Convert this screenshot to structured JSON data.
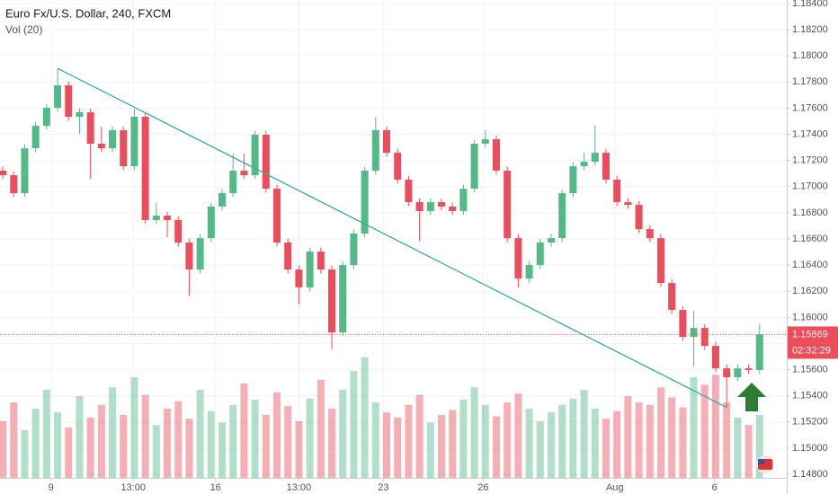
{
  "chart_data": {
    "type": "candlestick",
    "title": "Euro Fx/U.S. Dollar, 240, FXCM",
    "volume_label": "Vol (20)",
    "open": [
      1.17122,
      1.17087,
      1.1695,
      1.17293,
      1.17465,
      1.17603,
      1.17774,
      1.17534,
      1.17568,
      1.17328,
      1.17293,
      1.17431,
      1.17156,
      1.17534,
      1.16744,
      1.16778,
      1.16744,
      1.16572,
      1.16366,
      1.16606,
      1.16847,
      1.1695,
      1.17122,
      1.17087,
      1.17397,
      1.16984,
      1.16572,
      1.16366,
      1.16229,
      1.16503,
      1.16366,
      1.15885,
      1.164,
      1.16641,
      1.17122,
      1.17431,
      1.17259,
      1.17053,
      1.16881,
      1.16813,
      1.16881,
      1.16847,
      1.16813,
      1.16984,
      1.17328,
      1.17362,
      1.17122,
      1.16606,
      1.16297,
      1.164,
      1.16572,
      1.16606,
      1.1695,
      1.17156,
      1.1719,
      1.17259,
      1.17053,
      1.16881,
      1.1686,
      1.16675,
      1.16606,
      1.16263,
      1.16057,
      1.15851,
      1.15919,
      1.15782,
      1.1561,
      1.15542,
      1.1561,
      1.15597
    ],
    "high": [
      1.17152,
      1.17117,
      1.17323,
      1.17495,
      1.17633,
      1.17904,
      1.17804,
      1.17598,
      1.17598,
      1.17458,
      1.17461,
      1.17461,
      1.17594,
      1.17564,
      1.16878,
      1.16808,
      1.16774,
      1.16602,
      1.16636,
      1.16877,
      1.1698,
      1.17252,
      1.17252,
      1.17427,
      1.17427,
      1.17014,
      1.16602,
      1.16396,
      1.16533,
      1.16533,
      1.16396,
      1.1643,
      1.16671,
      1.17152,
      1.17531,
      1.17461,
      1.17289,
      1.17083,
      1.16911,
      1.16911,
      1.16911,
      1.16877,
      1.17014,
      1.17358,
      1.17432,
      1.17392,
      1.17152,
      1.16636,
      1.1643,
      1.16602,
      1.16636,
      1.1698,
      1.17186,
      1.1726,
      1.17469,
      1.17289,
      1.17083,
      1.16911,
      1.1689,
      1.16705,
      1.16636,
      1.16293,
      1.16087,
      1.16049,
      1.15949,
      1.15812,
      1.1564,
      1.1564,
      1.1564,
      1.15949
    ],
    "low": [
      1.17057,
      1.1692,
      1.1692,
      1.17263,
      1.17435,
      1.17573,
      1.17504,
      1.17404,
      1.17058,
      1.17263,
      1.17263,
      1.17126,
      1.17126,
      1.16714,
      1.16714,
      1.16614,
      1.16542,
      1.16166,
      1.16336,
      1.16576,
      1.16817,
      1.1692,
      1.17057,
      1.17057,
      1.16954,
      1.16542,
      1.16336,
      1.16099,
      1.16199,
      1.16336,
      1.15755,
      1.15855,
      1.1637,
      1.16611,
      1.17092,
      1.17229,
      1.17023,
      1.16851,
      1.16583,
      1.16783,
      1.16817,
      1.16783,
      1.16783,
      1.16954,
      1.17298,
      1.17092,
      1.16576,
      1.16227,
      1.16267,
      1.1637,
      1.16542,
      1.16576,
      1.1692,
      1.17126,
      1.1716,
      1.17023,
      1.16851,
      1.1683,
      1.16645,
      1.16576,
      1.16233,
      1.16027,
      1.15821,
      1.15621,
      1.15752,
      1.1558,
      1.15312,
      1.15512,
      1.15567,
      1.15567
    ],
    "close": [
      1.17087,
      1.1695,
      1.17293,
      1.17465,
      1.17603,
      1.17774,
      1.17534,
      1.17568,
      1.17328,
      1.17293,
      1.17431,
      1.17156,
      1.17534,
      1.16744,
      1.16778,
      1.16744,
      1.16572,
      1.16366,
      1.16606,
      1.16847,
      1.1695,
      1.17122,
      1.17087,
      1.17397,
      1.16984,
      1.16572,
      1.16366,
      1.16229,
      1.16503,
      1.16366,
      1.15885,
      1.164,
      1.16641,
      1.17122,
      1.17431,
      1.17259,
      1.17053,
      1.16881,
      1.16813,
      1.16881,
      1.16847,
      1.16813,
      1.16984,
      1.17328,
      1.17362,
      1.17122,
      1.16606,
      1.16297,
      1.164,
      1.16572,
      1.16606,
      1.1695,
      1.17156,
      1.1719,
      1.17259,
      1.17053,
      1.16881,
      1.1686,
      1.16675,
      1.16606,
      1.16263,
      1.16057,
      1.15851,
      1.15919,
      1.15782,
      1.1561,
      1.15542,
      1.1561,
      1.15597,
      1.15869
    ],
    "volume": [
      45,
      60,
      38,
      55,
      70,
      52,
      40,
      65,
      48,
      58,
      72,
      50,
      80,
      66,
      42,
      55,
      61,
      47,
      70,
      53,
      44,
      58,
      75,
      62,
      50,
      68,
      57,
      45,
      63,
      78,
      55,
      70,
      85,
      96,
      60,
      52,
      48,
      58,
      66,
      44,
      50,
      54,
      62,
      72,
      58,
      49,
      60,
      67,
      55,
      45,
      52,
      58,
      63,
      70,
      55,
      47,
      53,
      65,
      60,
      58,
      72,
      64,
      56,
      80,
      74,
      82,
      60,
      48,
      42,
      50
    ],
    "up_color": "#53b987",
    "down_color": "#eb4d5c",
    "xlim": [
      -0.25,
      71.48
    ],
    "xticks": [
      {
        "value": 4.4,
        "label": "9"
      },
      {
        "value": 11.9,
        "label": "13:00"
      },
      {
        "value": 19.4,
        "label": "16"
      },
      {
        "value": 27.0,
        "label": "13:00"
      },
      {
        "value": 34.7,
        "label": "23"
      },
      {
        "value": 43.8,
        "label": "26"
      },
      {
        "value": 55.8,
        "label": "Aug"
      },
      {
        "value": 64.9,
        "label": "6"
      }
    ],
    "ylim": [
      1.14773,
      1.18427
    ],
    "yticks": [
      {
        "value": 1.184,
        "label": "1.18400"
      },
      {
        "value": 1.182,
        "label": "1.18200"
      },
      {
        "value": 1.18,
        "label": "1.18000"
      },
      {
        "value": 1.178,
        "label": "1.17800"
      },
      {
        "value": 1.176,
        "label": "1.17600"
      },
      {
        "value": 1.174,
        "label": "1.17400"
      },
      {
        "value": 1.172,
        "label": "1.17200"
      },
      {
        "value": 1.17,
        "label": "1.17000"
      },
      {
        "value": 1.168,
        "label": "1.16800"
      },
      {
        "value": 1.166,
        "label": "1.16600"
      },
      {
        "value": 1.164,
        "label": "1.16400"
      },
      {
        "value": 1.162,
        "label": "1.16200"
      },
      {
        "value": 1.16,
        "label": "1.16000"
      },
      {
        "value": 1.158,
        "label": "1.15800"
      },
      {
        "value": 1.156,
        "label": "1.15600"
      },
      {
        "value": 1.154,
        "label": "1.15400"
      },
      {
        "value": 1.152,
        "label": "1.15200"
      },
      {
        "value": 1.15,
        "label": "1.15000"
      },
      {
        "value": 1.148,
        "label": "1.14800"
      }
    ],
    "vol_ylim": [
      0,
      100
    ],
    "grid": true,
    "trendline": {
      "x": [
        5,
        66
      ],
      "y": [
        1.17904,
        1.15312
      ],
      "color": "#3aa99f"
    },
    "last_price": {
      "value": 1.15869,
      "label": "1.15869"
    },
    "countdown": "02:32:29"
  }
}
